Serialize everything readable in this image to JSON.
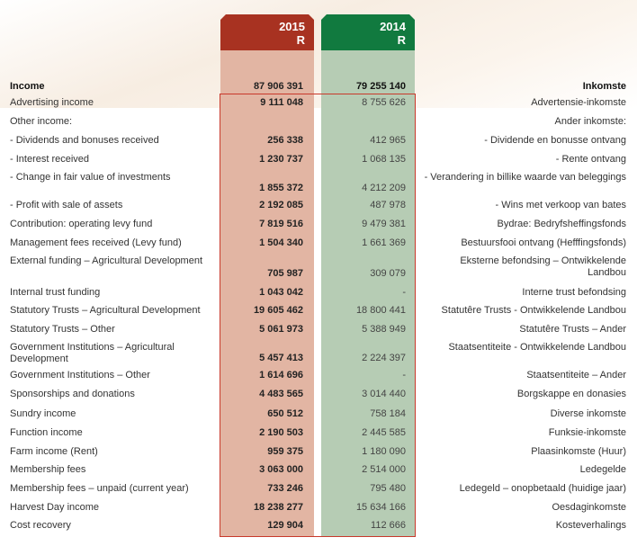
{
  "header": {
    "col2015": {
      "year": "2015",
      "unit": "R"
    },
    "col2014": {
      "year": "2014",
      "unit": "R"
    }
  },
  "colors": {
    "col2015_header": "#a83221",
    "col2015_fill": "#e2b5a3",
    "col2014_header": "#117a3f",
    "col2014_fill": "#b6ccb4",
    "frame": "#c8392b"
  },
  "rows": [
    {
      "en": "Income",
      "v2015": "87 906 391",
      "v2014": "79 255 140",
      "af": "Inkomste"
    },
    {
      "en": "Advertising income",
      "v2015": "9 111 048",
      "v2014": "8 755 626",
      "af": "Advertensie-inkomste"
    },
    {
      "en": "Other income:",
      "v2015": "",
      "v2014": "",
      "af": "Ander inkomste:"
    },
    {
      "en": "- Dividends and bonuses received",
      "v2015": "256 338",
      "v2014": "412 965",
      "af": "- Dividende en bonusse ontvang"
    },
    {
      "en": "- Interest received",
      "v2015": "1 230 737",
      "v2014": "1 068 135",
      "af": "- Rente ontvang"
    },
    {
      "en": "- Change in fair value of investments",
      "v2015": "1 855 372",
      "v2014": "4 212 209",
      "af": "- Verandering in billike waarde van beleggings"
    },
    {
      "en": "- Profit with sale of assets",
      "v2015": "2 192 085",
      "v2014": "487 978",
      "af": "- Wins met verkoop van bates"
    },
    {
      "en": "Contribution: operating levy fund",
      "v2015": "7 819 516",
      "v2014": "9 479 381",
      "af": "Bydrae: Bedryfsheffingsfonds"
    },
    {
      "en": "Management fees received (Levy fund)",
      "v2015": "1 504 340",
      "v2014": "1 661 369",
      "af": "Bestuursfooi ontvang (Hefffingsfonds)"
    },
    {
      "en": "External funding – Agricultural Development",
      "v2015": "705 987",
      "v2014": "309 079",
      "af": "Eksterne befondsing – Ontwikkelende Landbou"
    },
    {
      "en": "Internal trust funding",
      "v2015": "1 043 042",
      "v2014": "-",
      "af": "Interne trust befondsing"
    },
    {
      "en": "Statutory Trusts – Agricultural Development",
      "v2015": "19 605 462",
      "v2014": "18 800 441",
      "af": "Statutêre Trusts - Ontwikkelende Landbou"
    },
    {
      "en": "Statutory Trusts – Other",
      "v2015": "5 061 973",
      "v2014": "5 388 949",
      "af": "Statutêre Trusts – Ander"
    },
    {
      "en": "Government Institutions – Agricultural Development",
      "v2015": "5 457 413",
      "v2014": "2 224 397",
      "af": "Staatsentiteite - Ontwikkelende Landbou"
    },
    {
      "en": "Government Institutions – Other",
      "v2015": "1 614 696",
      "v2014": "-",
      "af": "Staatsentiteite – Ander"
    },
    {
      "en": "Sponsorships and donations",
      "v2015": "4 483 565",
      "v2014": "3 014 440",
      "af": "Borgskappe en donasies"
    },
    {
      "en": "Sundry income",
      "v2015": "650 512",
      "v2014": "758 184",
      "af": "Diverse inkomste"
    },
    {
      "en": "Function income",
      "v2015": "2 190 503",
      "v2014": "2 445 585",
      "af": "Funksie-inkomste"
    },
    {
      "en": "Farm income (Rent)",
      "v2015": "959 375",
      "v2014": "1 180 090",
      "af": "Plaasinkomste (Huur)"
    },
    {
      "en": "Membership fees",
      "v2015": "3 063 000",
      "v2014": "2 514 000",
      "af": "Ledegelde"
    },
    {
      "en": "Membership fees – unpaid (current year)",
      "v2015": "733 246",
      "v2014": "795 480",
      "af": "Ledegeld – onopbetaald (huidige jaar)"
    },
    {
      "en": "Harvest Day income",
      "v2015": "18 238 277",
      "v2014": "15 634 166",
      "af": "Oesdaginkomste"
    },
    {
      "en": "Cost recovery",
      "v2015": "129 904",
      "v2014": "112 666",
      "af": "Kosteverhalings"
    }
  ]
}
